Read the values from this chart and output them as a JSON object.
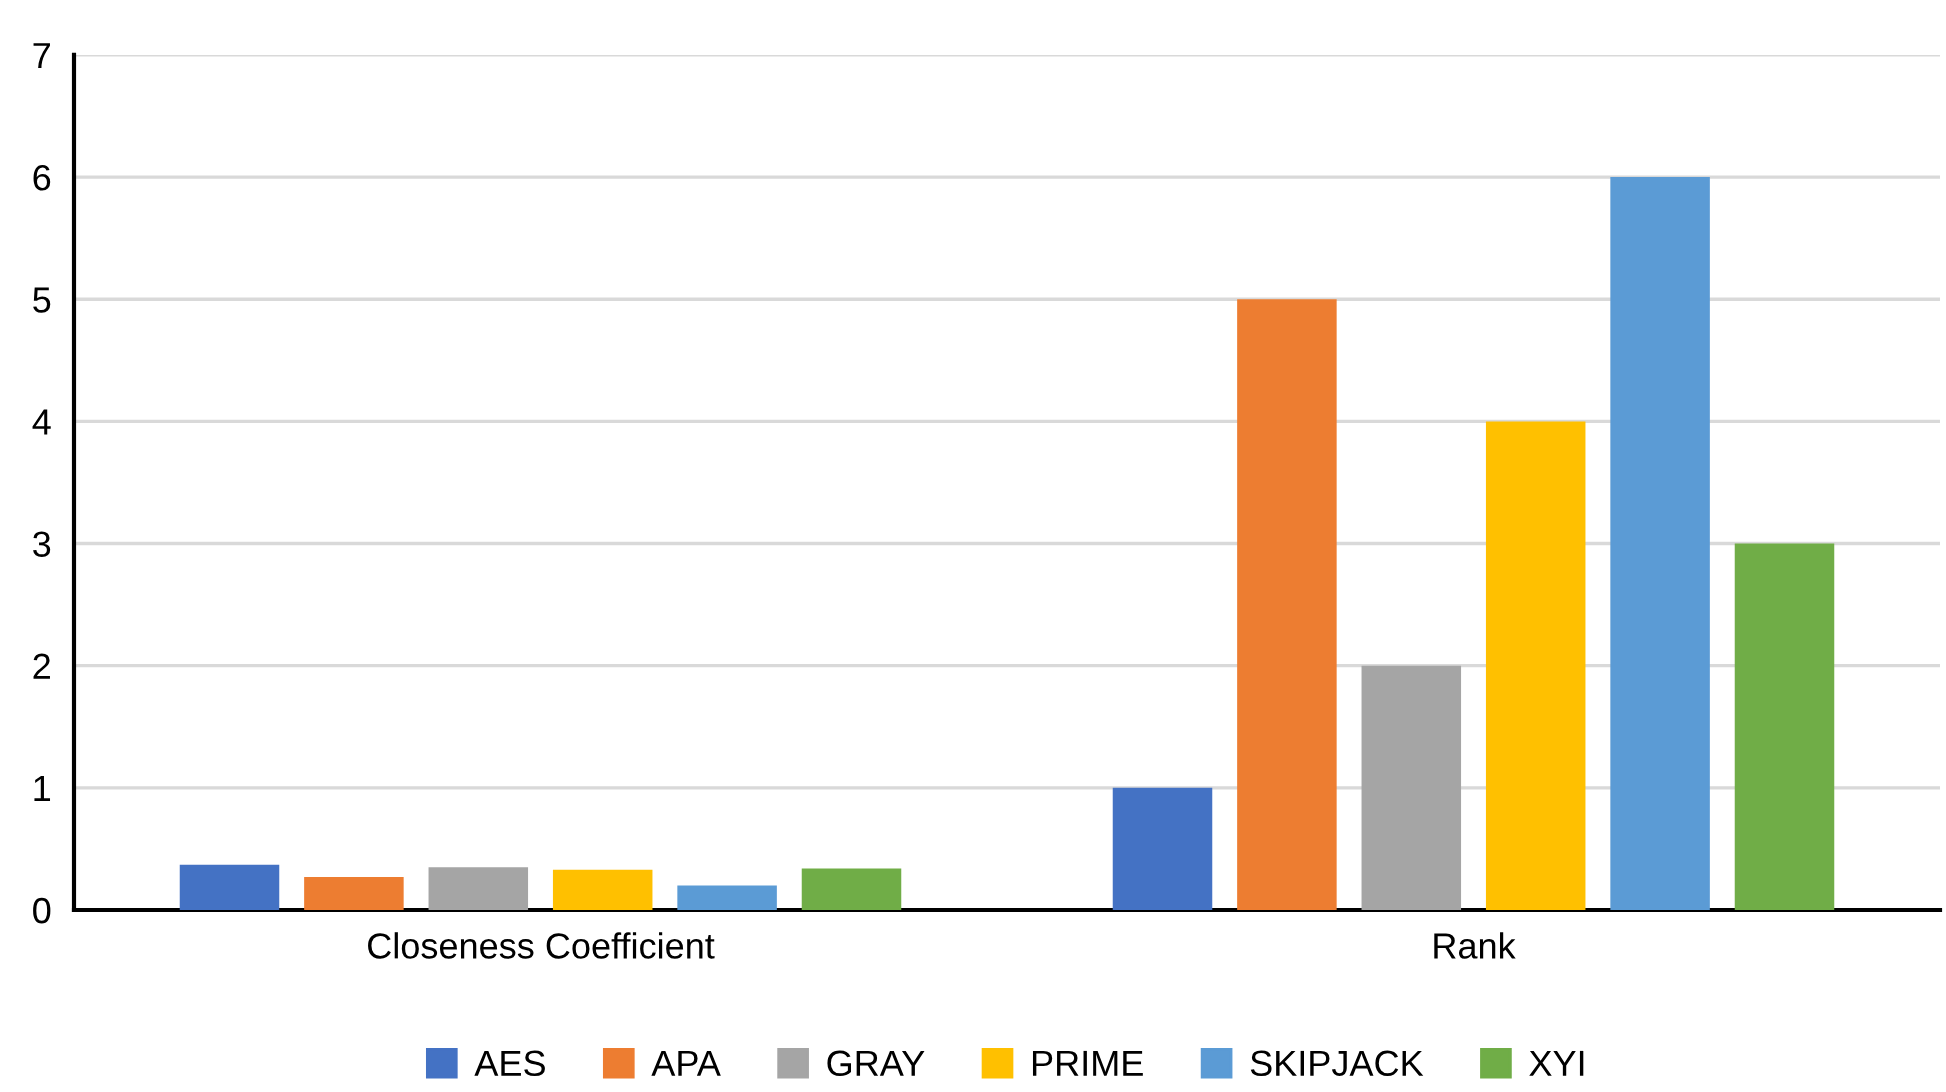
{
  "chart_data": {
    "type": "bar",
    "categories": [
      "Closeness Coefficient",
      "Rank"
    ],
    "series": [
      {
        "name": "AES",
        "color": "#4472c4",
        "values": [
          0.37,
          1
        ]
      },
      {
        "name": "APA",
        "color": "#ed7d31",
        "values": [
          0.27,
          5
        ]
      },
      {
        "name": "GRAY",
        "color": "#a5a5a5",
        "values": [
          0.35,
          2
        ]
      },
      {
        "name": "PRIME",
        "color": "#ffc000",
        "values": [
          0.33,
          4
        ]
      },
      {
        "name": "SKIPJACK",
        "color": "#5b9bd5",
        "values": [
          0.2,
          6
        ]
      },
      {
        "name": "XYI",
        "color": "#70ad47",
        "values": [
          0.34,
          3
        ]
      }
    ],
    "ylim": [
      0,
      7
    ],
    "yticks": [
      0,
      1,
      2,
      3,
      4,
      5,
      6,
      7
    ],
    "grid": "y",
    "legend": "bottom"
  }
}
